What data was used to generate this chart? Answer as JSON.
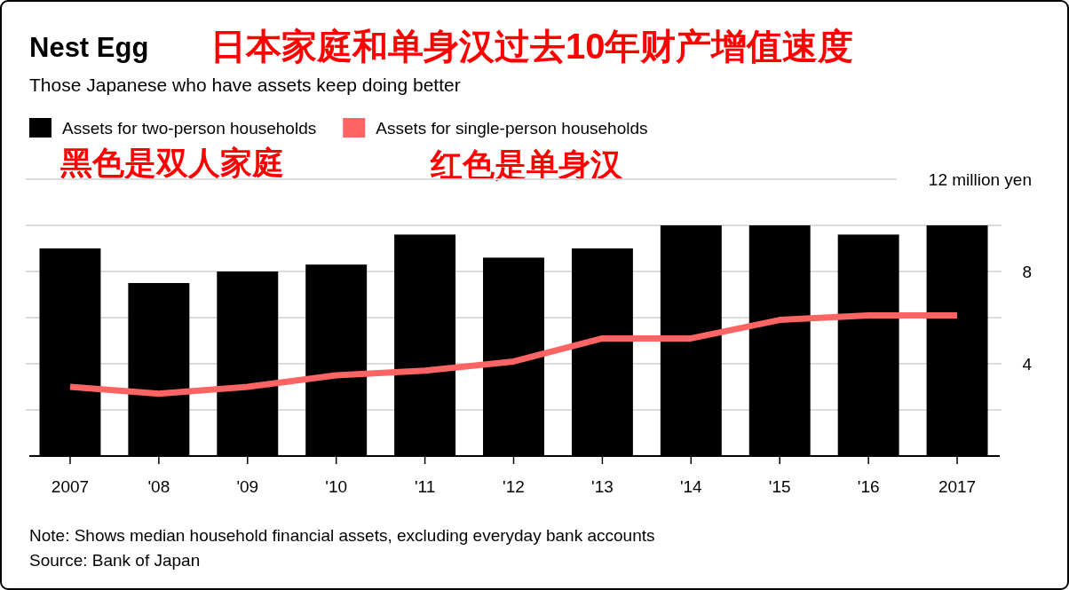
{
  "chart_data": {
    "type": "bar",
    "title": "Nest Egg",
    "subtitle": "Those Japanese who have assets keep doing better",
    "categories": [
      "2007",
      "'08",
      "'09",
      "'10",
      "'11",
      "'12",
      "'13",
      "'14",
      "'15",
      "'16",
      "2017"
    ],
    "series": [
      {
        "name": "Assets for two-person households",
        "color": "#000000",
        "values": [
          9.0,
          7.5,
          8.0,
          8.3,
          9.6,
          8.6,
          9.0,
          10,
          10,
          9.6,
          10
        ]
      },
      {
        "name": "Assets for single-person households",
        "type": "line",
        "color": "#ff6464",
        "values": [
          3.0,
          2.7,
          3.0,
          3.5,
          3.7,
          4.1,
          5.1,
          5.1,
          5.9,
          6.1,
          6.1
        ]
      }
    ],
    "ylim": [
      0,
      12
    ],
    "yticks": [
      {
        "value": 0,
        "label": null
      },
      {
        "value": 2,
        "label": null
      },
      4,
      {
        "value": 6,
        "label": null
      },
      8,
      {
        "value": 10,
        "label": null
      },
      {
        "value": 12,
        "label": "12 million yen"
      }
    ],
    "grid": "y",
    "legend": "top left",
    "annotations": [
      "日本家庭和单身汉过去10年财产增值速度",
      "黑色是双人家庭",
      "红色是单身汉",
      "Note: Shows median household financial assets, excluding everyday bank accounts",
      "Source: Bank of Japan"
    ]
  }
}
